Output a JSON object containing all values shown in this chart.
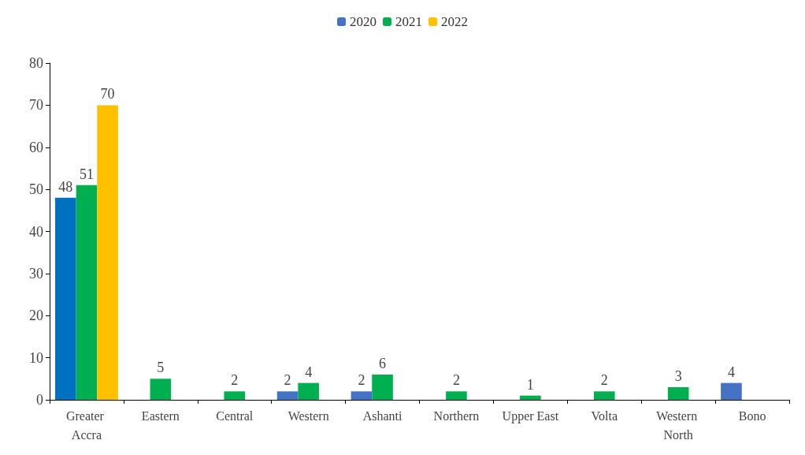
{
  "chart_data": {
    "type": "bar",
    "categories": [
      "Greater Accra",
      "Eastern",
      "Central",
      "Western",
      "Ashanti",
      "Northern",
      "Upper East",
      "Volta",
      "Western North",
      "Bono"
    ],
    "series": [
      {
        "name": "2020",
        "color": "#4472c4",
        "colors": [
          "#0070c0",
          null,
          null,
          "#4472c4",
          "#4472c4",
          null,
          null,
          null,
          null,
          "#4472c4"
        ],
        "values": [
          48,
          null,
          null,
          2,
          2,
          null,
          null,
          null,
          null,
          4
        ]
      },
      {
        "name": "2021",
        "color": "#00b050",
        "values": [
          51,
          5,
          2,
          4,
          6,
          2,
          1,
          2,
          3,
          null
        ]
      },
      {
        "name": "2022",
        "color": "#ffc000",
        "values": [
          70,
          null,
          null,
          null,
          null,
          null,
          null,
          null,
          null,
          null
        ]
      }
    ],
    "ylim": [
      0,
      80
    ],
    "yticks": [
      0,
      10,
      20,
      30,
      40,
      50,
      60,
      70,
      80
    ],
    "data_labels": true,
    "legend": "top",
    "grid": false
  }
}
